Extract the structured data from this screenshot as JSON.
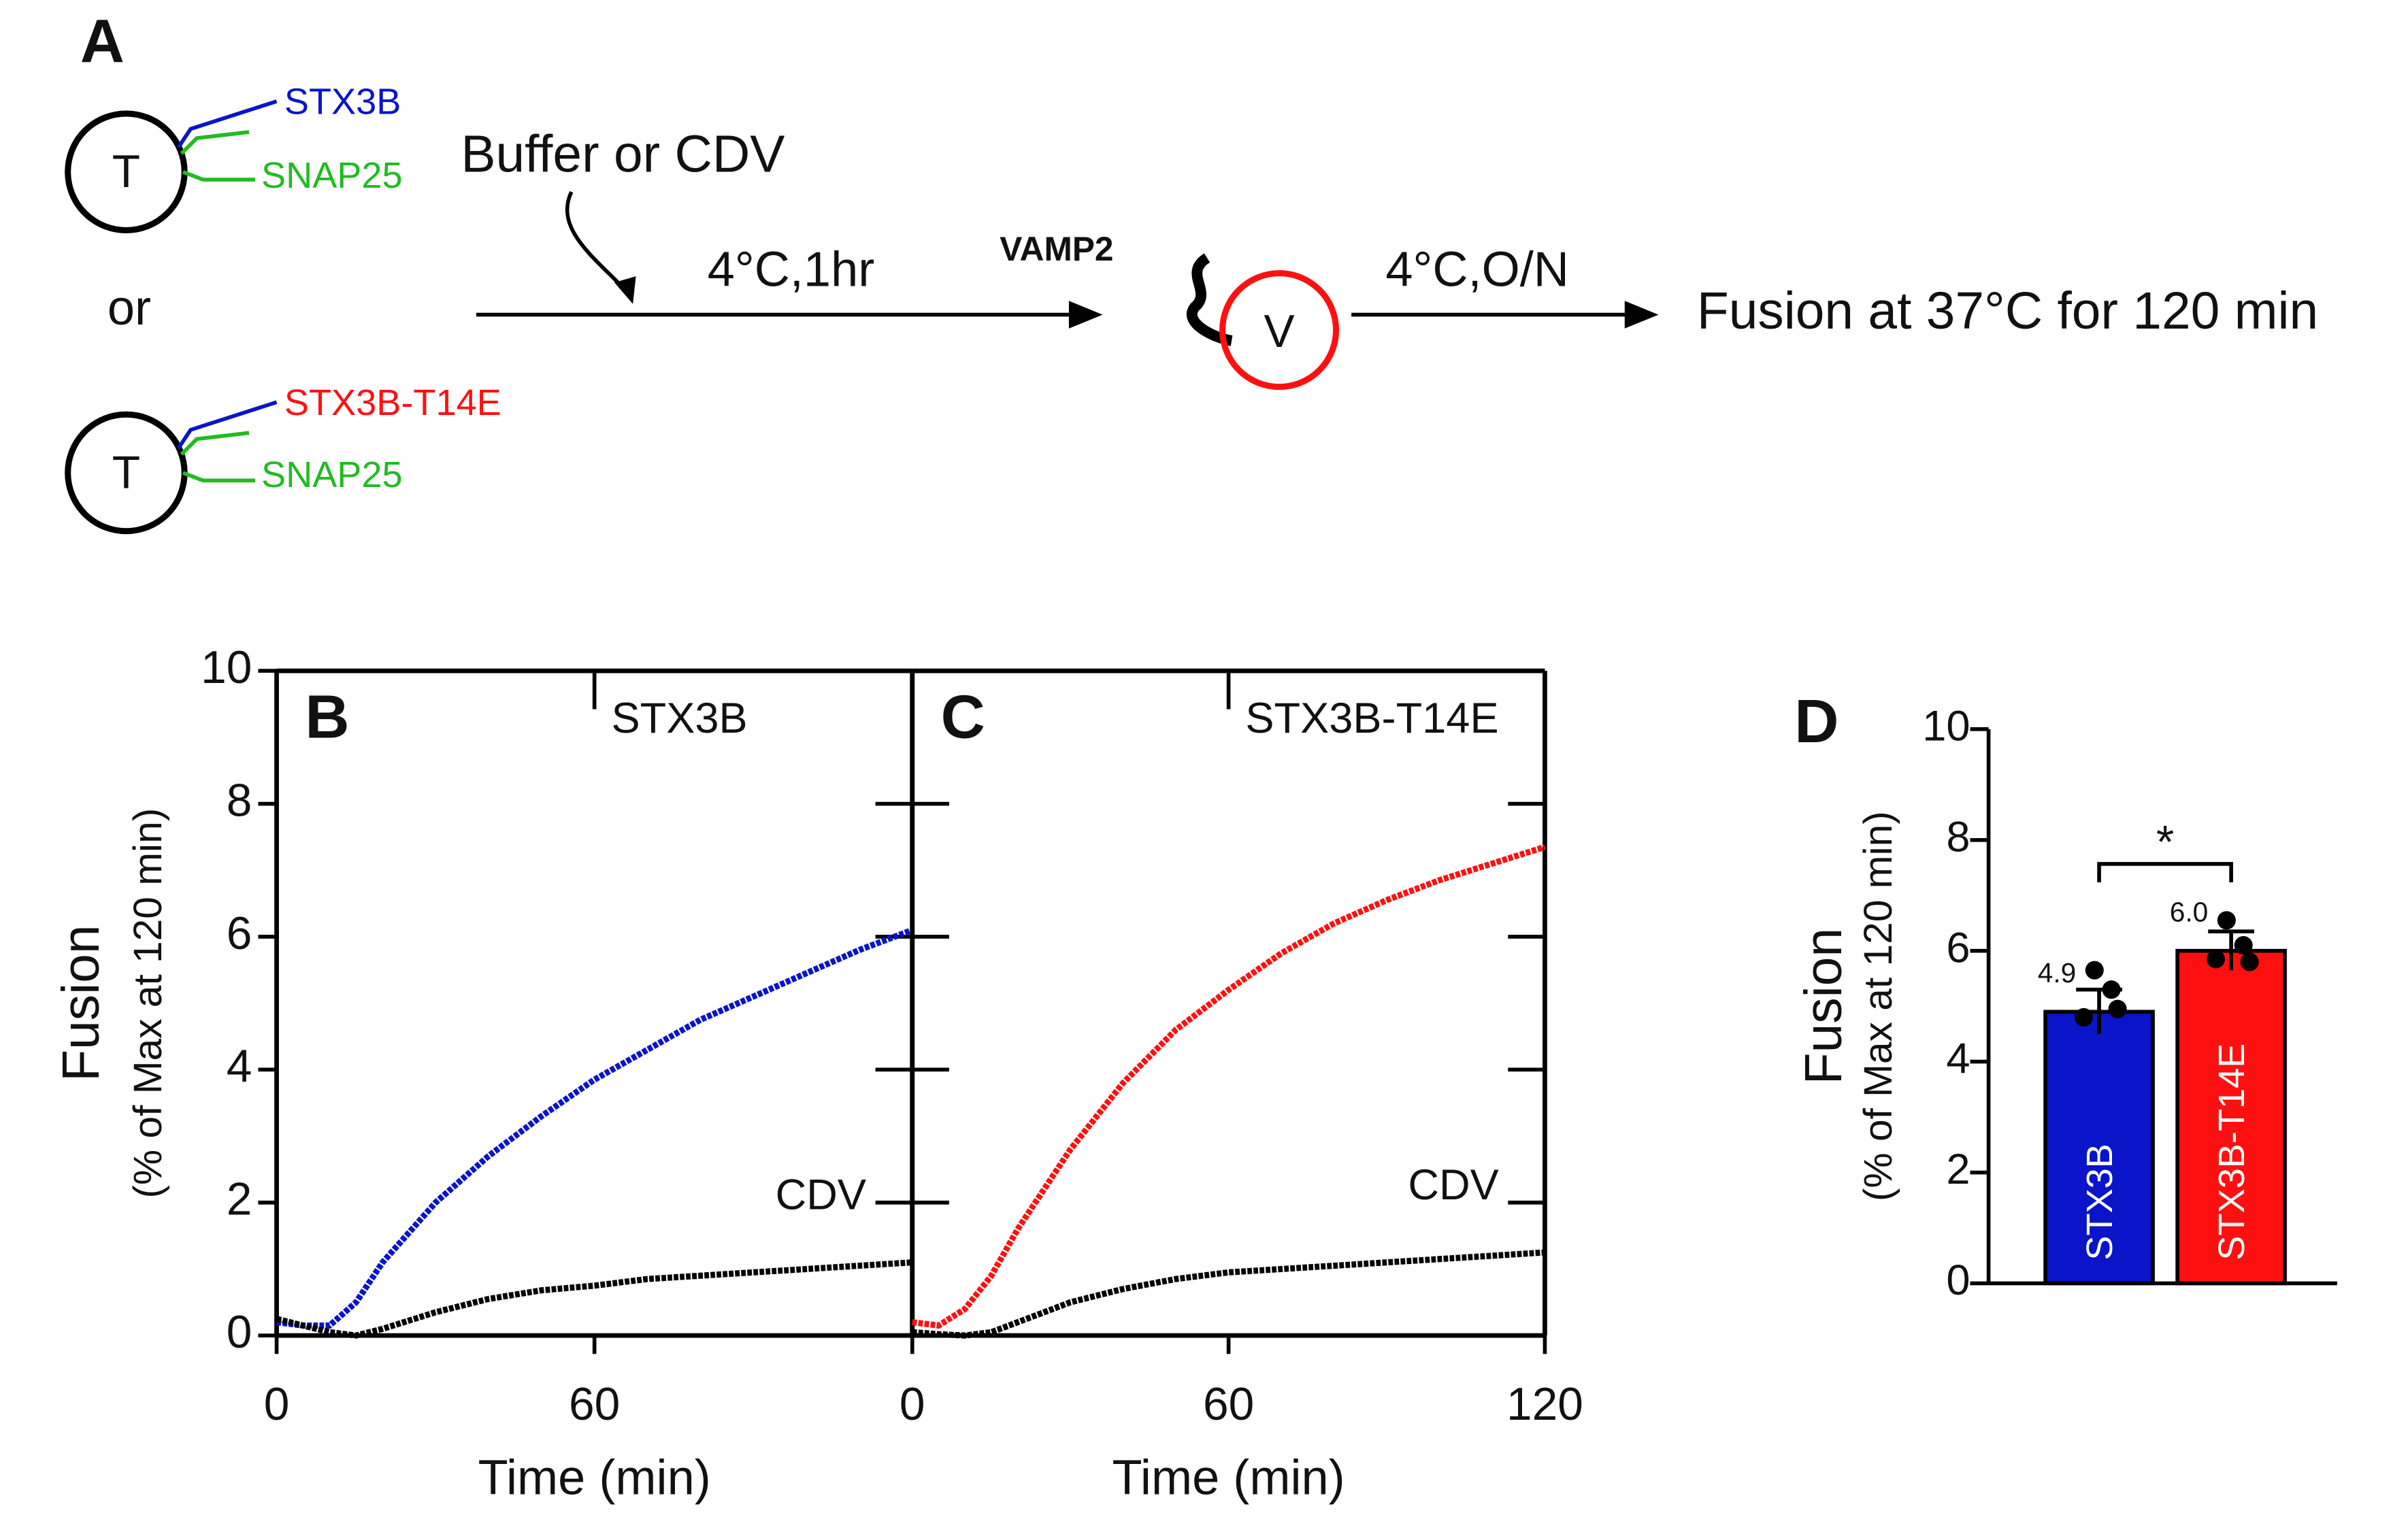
{
  "diagram": {
    "label": "A",
    "top": {
      "core": "T",
      "syntaxin": "STX3B",
      "snap": "SNAP25"
    },
    "or": "or",
    "bottom": {
      "core": "T",
      "syntaxin": "STX3B-T14E",
      "snap": "SNAP25"
    },
    "treatment": "Buffer or CDV",
    "step1": "4°C,1hr",
    "vsnare": "VAMP2",
    "vesicle": "V",
    "step2": "4°C,O/N",
    "result": "Fusion at 37°C for 120 min"
  },
  "chart_data": [
    {
      "type": "line",
      "panel": "B",
      "x": [
        0,
        5,
        10,
        15,
        20,
        30,
        40,
        50,
        60,
        70,
        80,
        90,
        100,
        110,
        120
      ],
      "series": [
        {
          "name": "STX3B",
          "color": "#0a14c8",
          "values": [
            0.2,
            0.15,
            0.15,
            0.5,
            1.1,
            2.0,
            2.7,
            3.3,
            3.85,
            4.3,
            4.75,
            5.1,
            5.45,
            5.8,
            6.1
          ]
        },
        {
          "name": "CDV",
          "color": "#000000",
          "values": [
            0.25,
            0.15,
            0.05,
            0.0,
            0.1,
            0.35,
            0.55,
            0.68,
            0.75,
            0.85,
            0.9,
            0.95,
            1.0,
            1.05,
            1.1
          ]
        }
      ],
      "xlim": [
        0,
        120
      ],
      "xticks": [
        0,
        60
      ],
      "ylim": [
        0,
        10
      ],
      "yticks": [
        0,
        2,
        4,
        6,
        8,
        10
      ],
      "xlabel": "Time (min)",
      "ylabel": [
        "Fusion",
        "(% of Max at 120 min)"
      ]
    },
    {
      "type": "line",
      "panel": "C",
      "x": [
        0,
        5,
        10,
        15,
        20,
        30,
        40,
        50,
        60,
        70,
        80,
        90,
        100,
        110,
        120
      ],
      "series": [
        {
          "name": "STX3B-T14E",
          "color": "#ff1010",
          "values": [
            0.2,
            0.15,
            0.4,
            0.9,
            1.6,
            2.8,
            3.8,
            4.6,
            5.2,
            5.75,
            6.2,
            6.55,
            6.85,
            7.1,
            7.35
          ]
        },
        {
          "name": "CDV",
          "color": "#000000",
          "values": [
            0.05,
            0.02,
            0.0,
            0.05,
            0.2,
            0.5,
            0.7,
            0.85,
            0.95,
            1.0,
            1.05,
            1.1,
            1.15,
            1.2,
            1.25
          ]
        }
      ],
      "xlim": [
        0,
        120
      ],
      "xticks": [
        0,
        60,
        120
      ],
      "ylim": [
        0,
        10
      ],
      "xlabel": "Time (min)"
    },
    {
      "type": "bar",
      "panel": "D",
      "categories": [
        "STX3B",
        "STX3B-T14E"
      ],
      "colors": [
        "#0a14c8",
        "#ff1010"
      ],
      "values": [
        4.9,
        6.0
      ],
      "value_labels": [
        "4.9",
        "6.0"
      ],
      "errors": [
        0.4,
        0.35
      ],
      "points": [
        [
          5.65,
          5.3,
          4.8,
          4.95
        ],
        [
          6.55,
          6.1,
          5.85,
          5.8
        ]
      ],
      "significance": "*",
      "ylim": [
        0,
        10
      ],
      "yticks": [
        0,
        2,
        4,
        6,
        8,
        10
      ],
      "ylabel": [
        "Fusion",
        "(% of Max at 120 min)"
      ]
    }
  ]
}
